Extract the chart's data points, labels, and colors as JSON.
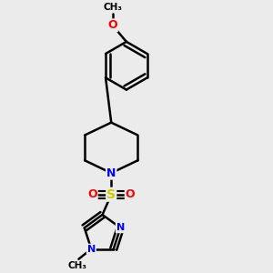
{
  "bg_color": "#ebebeb",
  "bond_color": "#000000",
  "bond_width": 1.8,
  "atom_colors": {
    "N": "#0000ff",
    "O": "#ff0000",
    "S": "#cccc00",
    "C": "#000000"
  },
  "font_size_atom": 9,
  "font_size_methyl": 7.5
}
